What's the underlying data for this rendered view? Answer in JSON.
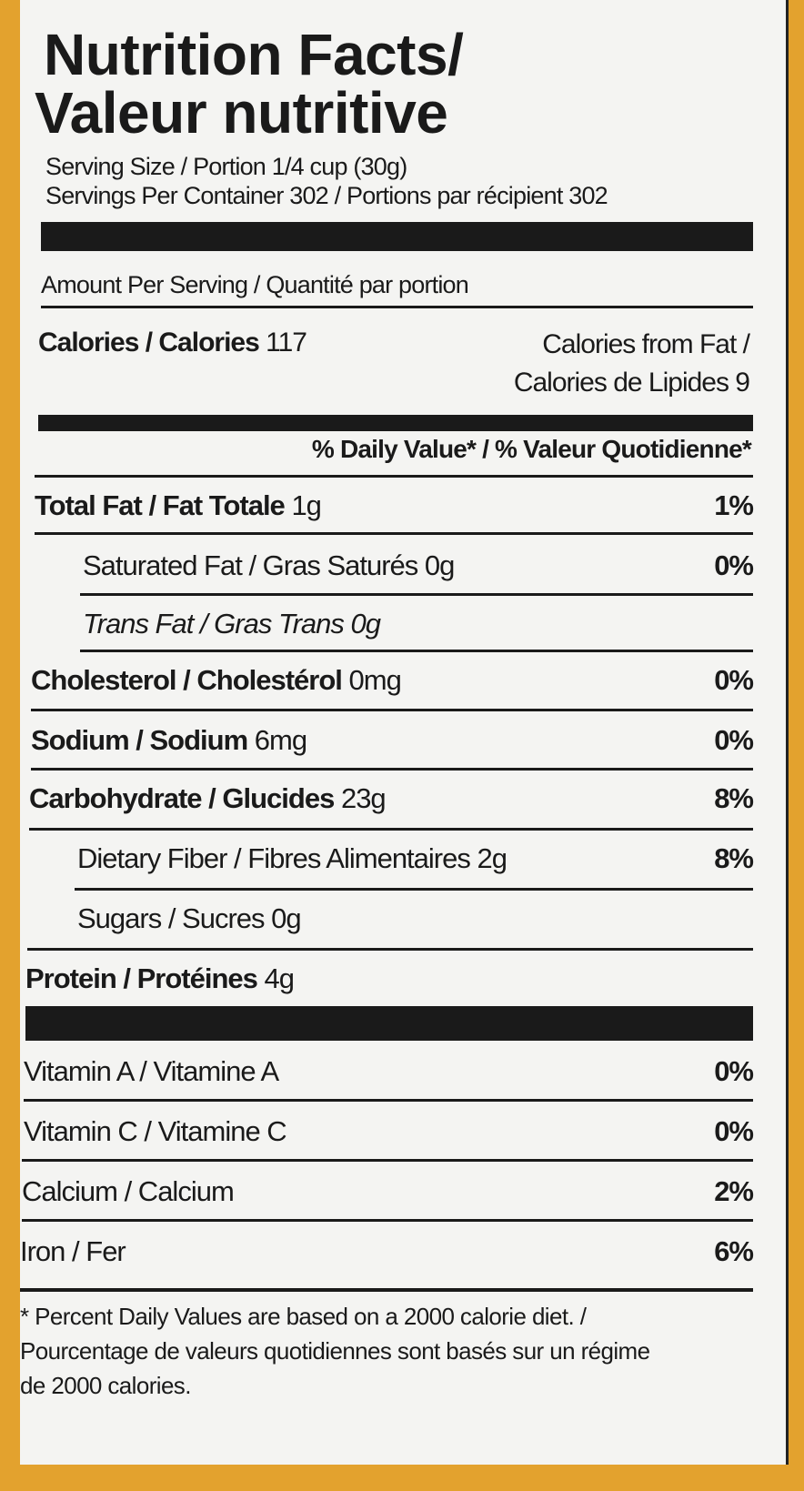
{
  "title_line1": "Nutrition Facts/",
  "title_line2": "Valeur nutritive",
  "serving_size": "Serving Size / Portion 1/4 cup (30g)",
  "servings_per_container": "Servings Per Container 302 / Portions par récipient 302",
  "amount_per_serving": "Amount Per Serving / Quantité par portion",
  "calories": {
    "label": "Calories / Calories",
    "value": "117"
  },
  "calories_from_fat": {
    "line1": "Calories from Fat /",
    "line2": "Calories de Lipides 9"
  },
  "daily_value_header": "% Daily Value* / % Valeur Quotidienne*",
  "nutrients": [
    {
      "label": "Total Fat / Fat Totale",
      "amount": "1g",
      "pct": "1%"
    },
    {
      "label": "Saturated Fat / Gras Saturés",
      "amount": "0g",
      "pct": "0%"
    },
    {
      "label": "Trans Fat / Gras Trans",
      "amount": "0g",
      "pct": ""
    },
    {
      "label": "Cholesterol / Cholestérol",
      "amount": "0mg",
      "pct": "0%"
    },
    {
      "label": "Sodium / Sodium",
      "amount": "6mg",
      "pct": "0%"
    },
    {
      "label": "Carbohydrate / Glucides",
      "amount": "23g",
      "pct": "8%"
    },
    {
      "label": "Dietary Fiber / Fibres Alimentaires",
      "amount": "2g",
      "pct": "8%"
    },
    {
      "label": "Sugars / Sucres",
      "amount": "0g",
      "pct": ""
    },
    {
      "label": "Protein / Protéines",
      "amount": "4g",
      "pct": ""
    }
  ],
  "vitamins": [
    {
      "label": "Vitamin A / Vitamine A",
      "pct": "0%"
    },
    {
      "label": "Vitamin C / Vitamine C",
      "pct": "0%"
    },
    {
      "label": "Calcium / Calcium",
      "pct": "2%"
    },
    {
      "label": "Iron / Fer",
      "pct": "6%"
    }
  ],
  "footnote": {
    "line1": "* Percent Daily Values are based on a 2000 calorie diet. /",
    "line2": "Pourcentage de valeurs quotidiennes sont basés sur un régime",
    "line3": "de 2000 calories."
  },
  "colors": {
    "background": "#e3a22e",
    "label": "#f4f4f2",
    "ink": "#1a1a1a"
  }
}
